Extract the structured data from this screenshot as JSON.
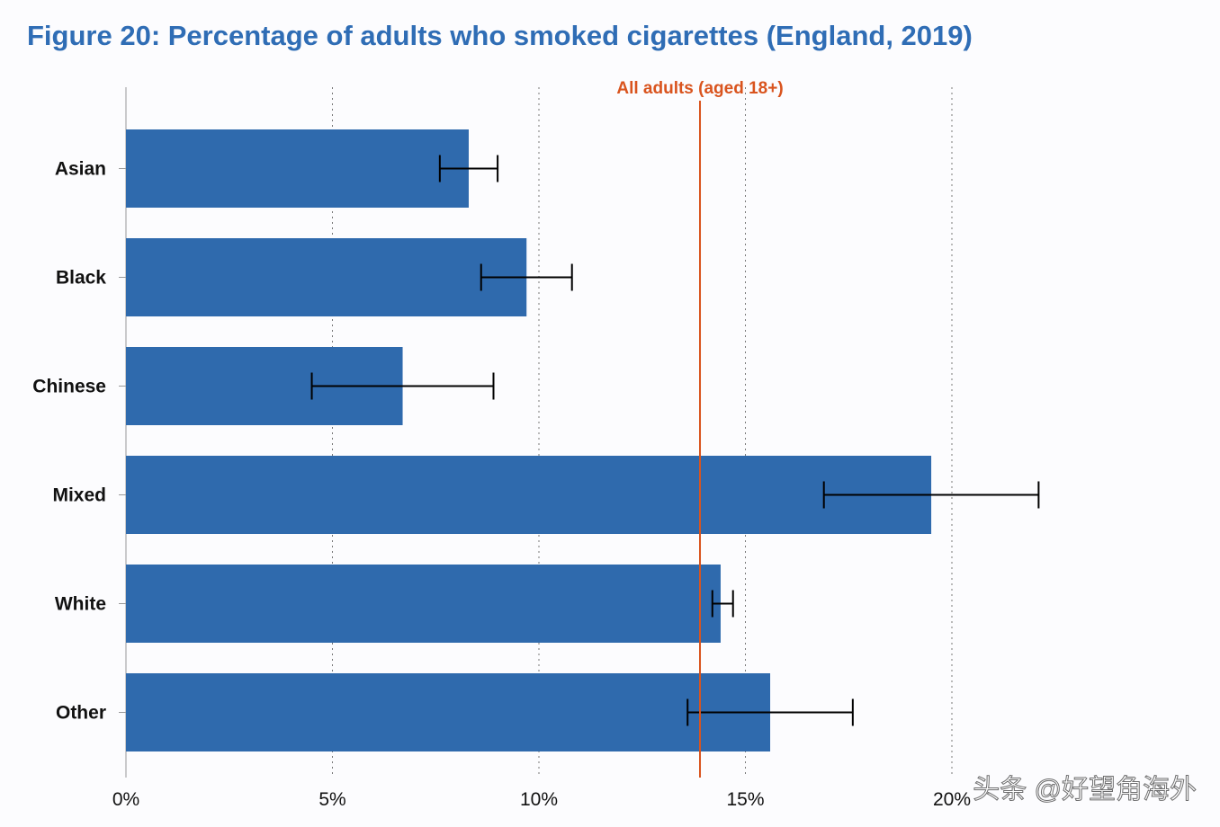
{
  "chart_data": {
    "type": "bar",
    "orientation": "horizontal",
    "title": "Figure 20: Percentage of adults who smoked cigarettes (England, 2019)",
    "categories": [
      "Asian",
      "Black",
      "Chinese",
      "Mixed",
      "White",
      "Other"
    ],
    "values": [
      8.3,
      9.7,
      6.7,
      19.5,
      14.4,
      15.6
    ],
    "error_low": [
      7.6,
      8.6,
      4.5,
      16.9,
      14.2,
      13.6
    ],
    "error_high": [
      9.0,
      10.8,
      8.9,
      22.1,
      14.7,
      17.6
    ],
    "xlim": [
      0,
      20
    ],
    "x_ticks": [
      0,
      5,
      10,
      15,
      20
    ],
    "x_tick_labels": [
      "0%",
      "5%",
      "10%",
      "15%",
      "20%"
    ],
    "xlabel": "",
    "ylabel": "",
    "grid": "vertical dotted",
    "reference_line": {
      "label": "All adults (aged 18+)",
      "value": 13.9,
      "color": "#d9541e"
    },
    "bar_color": "#2f6aad",
    "title_color": "#2f6db5"
  },
  "watermark": "头条 @好望角海外"
}
